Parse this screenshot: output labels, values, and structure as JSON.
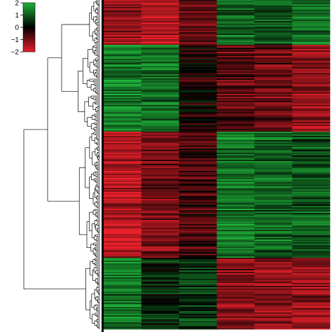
{
  "chart_data": {
    "type": "heatmap",
    "title": "",
    "xlabel": "",
    "ylabel": "",
    "columns": 6,
    "value_range": [
      -2,
      2
    ],
    "colors": {
      "low": "#e8202a",
      "mid": "#000000",
      "high": "#1fb33a"
    },
    "legend": {
      "placement": "top-left",
      "ticks": [
        {
          "value": 2,
          "label": "2"
        },
        {
          "value": 1,
          "label": "1"
        },
        {
          "value": 0,
          "label": "0"
        },
        {
          "value": -1,
          "label": "−1"
        },
        {
          "value": -2,
          "label": "−2"
        }
      ]
    },
    "clusters": [
      {
        "name": "",
        "row_share": 0.135,
        "column_means": [
          -1.3,
          -1.5,
          -0.9,
          1.1,
          0.9,
          1.2
        ]
      },
      {
        "name": "",
        "row_share": 0.265,
        "column_means": [
          1.4,
          1.3,
          -0.2,
          -0.8,
          -1.0,
          -1.3
        ]
      },
      {
        "name": "",
        "row_share": 0.385,
        "column_means": [
          -1.5,
          -1.0,
          -0.5,
          1.3,
          1.1,
          0.9
        ]
      },
      {
        "name": "",
        "row_share": 0.215,
        "column_means": [
          1.3,
          0.4,
          0.6,
          -1.1,
          -1.2,
          -1.3
        ]
      }
    ]
  }
}
